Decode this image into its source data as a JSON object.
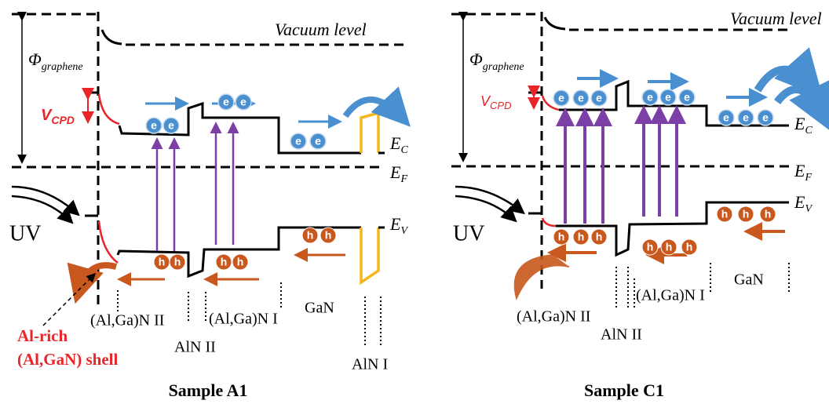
{
  "panels": [
    {
      "vacuum_level": "Vacuum level",
      "phi": "Φ",
      "phi_sub": "graphene",
      "vcpd": "V",
      "vcpd_sub": "CPD",
      "ec": "E",
      "ec_sub": "C",
      "ef": "E",
      "ef_sub": "F",
      "ev": "E",
      "ev_sub": "V",
      "uv": "UV",
      "electron": "e",
      "hole": "h",
      "regions": [
        "(Al,Ga)N II",
        "AlN II",
        "(Al,Ga)N I",
        "GaN",
        "AlN I"
      ],
      "shell": [
        "Al-rich",
        "(Al,GaN) shell"
      ],
      "title": "Sample A1"
    },
    {
      "vacuum_level": "Vacuum level",
      "phi": "Φ",
      "phi_sub": "graphene",
      "vcpd": "V",
      "vcpd_sub": "CPD",
      "ec": "E",
      "ec_sub": "C",
      "ef": "E",
      "ef_sub": "F",
      "ev": "E",
      "ev_sub": "V",
      "uv": "UV",
      "electron": "e",
      "hole": "h",
      "regions": [
        "(Al,Ga)N II",
        "AlN II",
        "(Al,Ga)N I",
        "GaN"
      ],
      "title": "Sample C1"
    }
  ]
}
